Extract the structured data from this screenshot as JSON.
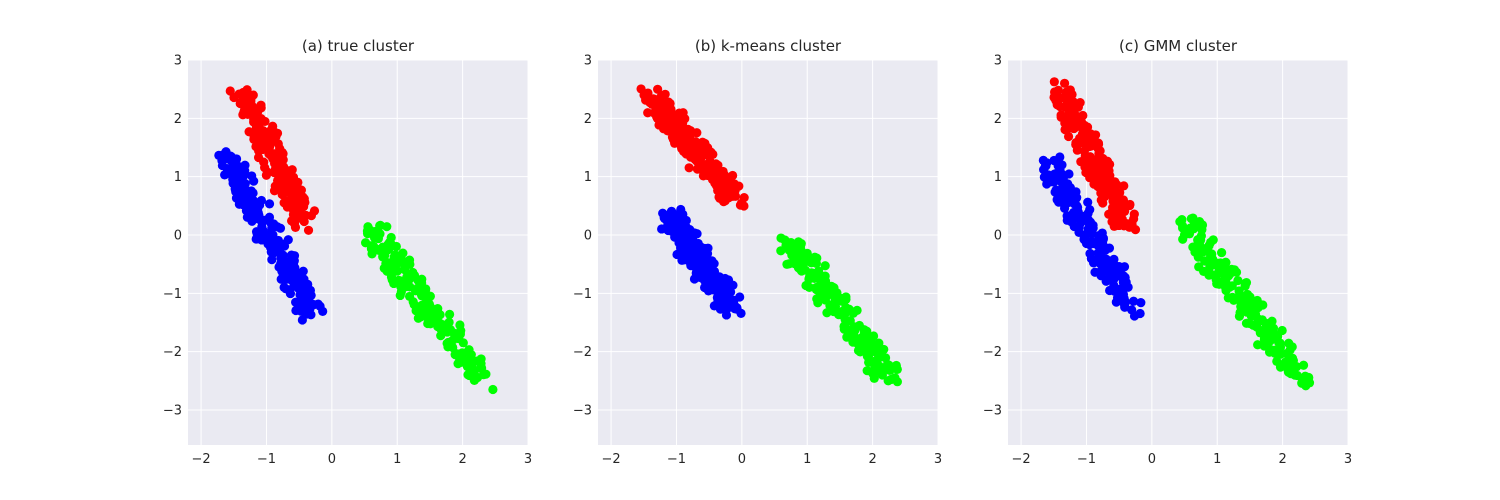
{
  "chart_data": [
    {
      "type": "scatter",
      "title": "(a) true cluster",
      "xlim": [
        -2.2,
        3.0
      ],
      "ylim": [
        -3.6,
        3.0
      ],
      "xticks": [
        "−2",
        "−1",
        "0",
        "1",
        "2",
        "3"
      ],
      "yticks": [
        "3",
        "2",
        "1",
        "0",
        "−1",
        "−2",
        "−3"
      ],
      "grid": true,
      "series": [
        {
          "color": "#ff0000",
          "centers": [
            [
              -1.4,
              2.5
            ],
            [
              -0.4,
              0.2
            ]
          ],
          "n": 200
        },
        {
          "color": "#0000ff",
          "centers": [
            [
              -1.6,
              1.3
            ],
            [
              -0.3,
              -1.3
            ]
          ],
          "n": 200
        },
        {
          "color": "#00ff00",
          "centers": [
            [
              0.55,
              0.15
            ],
            [
              2.3,
              -2.5
            ]
          ],
          "n": 200
        }
      ]
    },
    {
      "type": "scatter",
      "title": "(b) k-means cluster",
      "xlim": [
        -2.2,
        3.0
      ],
      "ylim": [
        -3.6,
        3.0
      ],
      "xticks": [
        "−2",
        "−1",
        "0",
        "1",
        "2",
        "3"
      ],
      "yticks": [
        "3",
        "2",
        "1",
        "0",
        "−1",
        "−2",
        "−3"
      ],
      "grid": true,
      "series": [
        {
          "color": "#ff0000",
          "centers": [
            [
              -1.4,
              2.4
            ],
            [
              -0.1,
              0.6
            ]
          ],
          "n": 220
        },
        {
          "color": "#0000ff",
          "centers": [
            [
              -1.1,
              0.3
            ],
            [
              -0.1,
              -1.3
            ]
          ],
          "n": 220
        },
        {
          "color": "#00ff00",
          "centers": [
            [
              0.7,
              -0.1
            ],
            [
              2.3,
              -2.5
            ]
          ],
          "n": 200
        }
      ]
    },
    {
      "type": "scatter",
      "title": "(c) GMM cluster",
      "xlim": [
        -2.2,
        3.0
      ],
      "ylim": [
        -3.6,
        3.0
      ],
      "xticks": [
        "−2",
        "−1",
        "0",
        "1",
        "2",
        "3"
      ],
      "yticks": [
        "3",
        "2",
        "1",
        "0",
        "−1",
        "−2",
        "−3"
      ],
      "grid": true,
      "series": [
        {
          "color": "#ff0000",
          "centers": [
            [
              -1.4,
              2.5
            ],
            [
              -0.4,
              0.2
            ]
          ],
          "n": 200
        },
        {
          "color": "#0000ff",
          "centers": [
            [
              -1.6,
              1.3
            ],
            [
              -0.3,
              -1.3
            ]
          ],
          "n": 200
        },
        {
          "color": "#00ff00",
          "centers": [
            [
              0.55,
              0.15
            ],
            [
              2.3,
              -2.5
            ]
          ],
          "n": 200
        }
      ]
    }
  ]
}
